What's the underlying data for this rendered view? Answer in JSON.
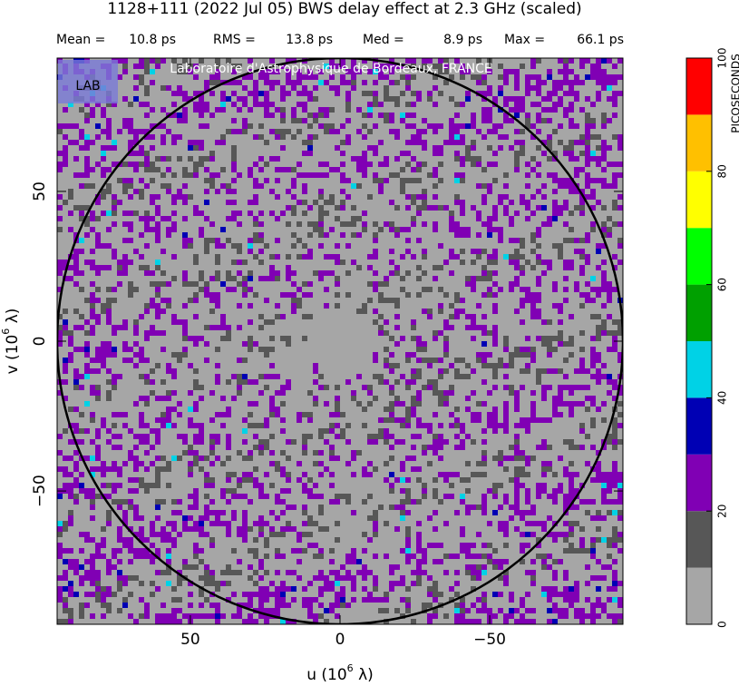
{
  "chart_data": {
    "type": "uv-map",
    "title": "1128+111  (2022 Jul 05)   BWS delay effect at  2.3 GHz (scaled)",
    "stats": [
      [
        "Mean =",
        "10.8 ps"
      ],
      [
        "RMS =",
        "13.8 ps"
      ],
      [
        "Med =",
        "8.9 ps"
      ],
      [
        "Max =",
        "66.1 ps"
      ]
    ],
    "watermark": "Laboratoire d'Astrophysique de Bordeaux, FRANCE",
    "logo": "LAB",
    "xlabel": {
      "pre": "u  (10",
      "sup": "6",
      "post": " λ)"
    },
    "ylabel": {
      "pre": "v  (10",
      "sup": "6",
      "post": " λ)"
    },
    "xlim": [
      94.5,
      -94.5
    ],
    "ylim": [
      -94.5,
      94.5
    ],
    "xticks": [
      50,
      0,
      {
        "value": -50,
        "label": "−50"
      }
    ],
    "yticks": [
      {
        "value": -50,
        "label": "−50"
      },
      0,
      50
    ],
    "circle_radius": 94.5,
    "colorbar": {
      "label": "PICOSECONDS",
      "lim": [
        0,
        100
      ],
      "bounds": [
        0,
        10,
        20,
        30,
        40,
        50,
        60,
        70,
        80,
        90,
        100
      ],
      "colors": [
        "#a6a6a6",
        "#575757",
        "#8000b4",
        "#0000b4",
        "#00d2e6",
        "#00a000",
        "#00ff00",
        "#ffff00",
        "#ffc000",
        "#ff0000"
      ],
      "ticks": [
        0,
        20,
        40,
        60,
        80,
        100
      ]
    }
  }
}
